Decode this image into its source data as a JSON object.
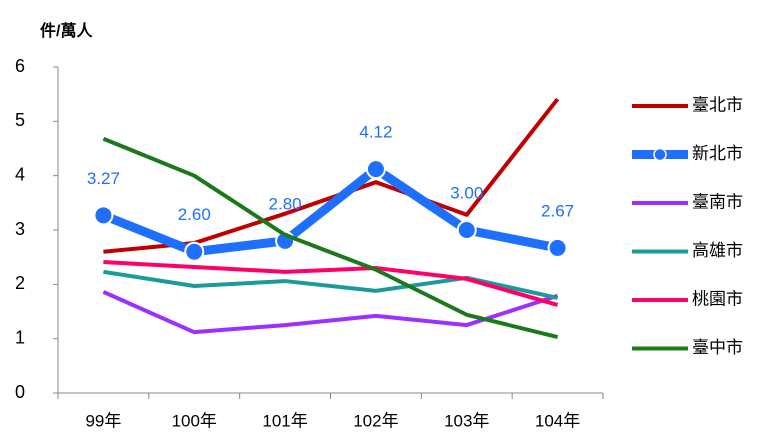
{
  "chart_data": {
    "type": "line",
    "ylabel": "件/萬人",
    "categories": [
      "99年",
      "100年",
      "101年",
      "102年",
      "103年",
      "104年"
    ],
    "ylim": [
      0,
      6
    ],
    "yticks": [
      0,
      1,
      2,
      3,
      4,
      5,
      6
    ],
    "series": [
      {
        "name": "臺北市",
        "color": "#c00000",
        "values": [
          2.6,
          2.76,
          3.3,
          3.88,
          3.28,
          5.41
        ]
      },
      {
        "name": "新北市",
        "color": "#1f6fff",
        "markers": true,
        "values": [
          3.27,
          2.6,
          2.8,
          4.12,
          3.0,
          2.67
        ],
        "value_labels": [
          "3.27",
          "2.60",
          "2.80",
          "4.12",
          "3.00",
          "2.67"
        ]
      },
      {
        "name": "臺南市",
        "color": "#9b30ff",
        "values": [
          1.86,
          1.12,
          1.25,
          1.42,
          1.25,
          1.79
        ]
      },
      {
        "name": "高雄市",
        "color": "#1a9a9a",
        "values": [
          2.23,
          1.97,
          2.06,
          1.88,
          2.12,
          1.75
        ]
      },
      {
        "name": "桃園市",
        "color": "#ff0066",
        "values": [
          2.41,
          2.32,
          2.23,
          2.3,
          2.1,
          1.62
        ]
      },
      {
        "name": "臺中市",
        "color": "#1a7a1a",
        "values": [
          4.68,
          4.0,
          2.91,
          2.27,
          1.44,
          1.03
        ]
      }
    ],
    "legend": "right"
  }
}
